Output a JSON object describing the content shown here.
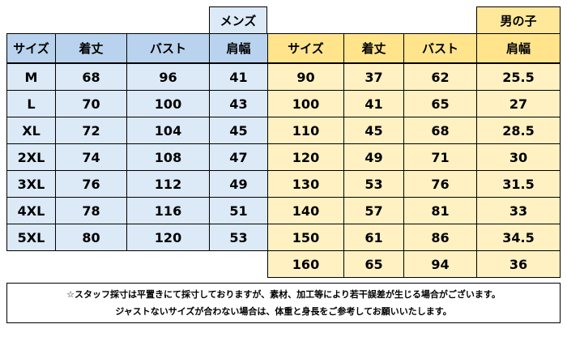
{
  "mens": {
    "tag": "メンズ",
    "headers": [
      "サイズ",
      "着丈",
      "バスト",
      "肩幅"
    ],
    "rows": [
      [
        "M",
        "68",
        "96",
        "41"
      ],
      [
        "L",
        "70",
        "100",
        "43"
      ],
      [
        "XL",
        "72",
        "104",
        "45"
      ],
      [
        "2XL",
        "74",
        "108",
        "47"
      ],
      [
        "3XL",
        "76",
        "112",
        "49"
      ],
      [
        "4XL",
        "78",
        "116",
        "51"
      ],
      [
        "5XL",
        "80",
        "120",
        "53"
      ]
    ]
  },
  "boys": {
    "tag": "男の子",
    "headers": [
      "サイズ",
      "着丈",
      "バスト",
      "肩幅"
    ],
    "rows": [
      [
        "90",
        "37",
        "62",
        "25.5"
      ],
      [
        "100",
        "41",
        "65",
        "27"
      ],
      [
        "110",
        "45",
        "68",
        "28.5"
      ],
      [
        "120",
        "49",
        "71",
        "30"
      ],
      [
        "130",
        "53",
        "76",
        "31.5"
      ],
      [
        "140",
        "57",
        "81",
        "33"
      ],
      [
        "150",
        "61",
        "86",
        "34.5"
      ],
      [
        "160",
        "65",
        "94",
        "36"
      ]
    ]
  },
  "notes": [
    "☆スタッフ採寸は平置きにて採寸しておりますが、素材、加工等により若干誤差が生じる場合がございます。",
    "ジャストないサイズが合わない場合は、体重と身長をご参考してお願いいたします。"
  ],
  "colors": {
    "mens_header": "#b9d3ee",
    "mens_body": "#dce9f7",
    "boys_header": "#ffe48c",
    "boys_body": "#fff1c2"
  }
}
